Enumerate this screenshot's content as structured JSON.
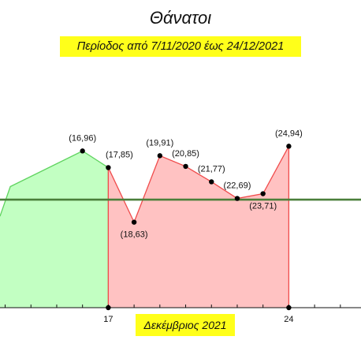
{
  "chart_data": {
    "type": "area",
    "title": "Θάνατοι",
    "subtitle": "Περίοδος από 7/11/2020 έως 24/12/2021",
    "xlabel": "Δεκέμβριος 2021",
    "ylabel": "",
    "x_tick_labels": [
      "17",
      "24"
    ],
    "x_range": [
      12.8,
      26.8
    ],
    "y_range": [
      16.0,
      26.3
    ],
    "reference_line": {
      "y": 20.55,
      "color": "#4a7f3a"
    },
    "green_region": {
      "color": "#c2ffc2",
      "stroke": "#5fd35f",
      "points": [
        {
          "x": 12.8,
          "y": 19.85
        },
        {
          "x": 13.2,
          "y": 21.1
        },
        {
          "x": 16.0,
          "y": 22.6,
          "label": "(16,96)"
        },
        {
          "x": 17.0,
          "y": 21.9,
          "label": "(17,85)"
        }
      ]
    },
    "red_region": {
      "color": "#ffc2c2",
      "stroke": "#f04c4c",
      "points": [
        {
          "x": 17.0,
          "y": 21.9,
          "label": "(17,85)"
        },
        {
          "x": 18.0,
          "y": 19.6,
          "label": "(18,63)"
        },
        {
          "x": 19.0,
          "y": 22.4,
          "label": "(19,91)"
        },
        {
          "x": 20.0,
          "y": 21.95,
          "label": "(20,85)"
        },
        {
          "x": 21.0,
          "y": 21.3,
          "label": "(21,77)"
        },
        {
          "x": 22.0,
          "y": 20.6,
          "label": "(22,69)"
        },
        {
          "x": 23.0,
          "y": 20.8,
          "label": "(23,71)"
        },
        {
          "x": 24.0,
          "y": 22.8,
          "label": "(24,94)"
        }
      ]
    },
    "base_points": [
      {
        "x": 17.0,
        "y": 16.0
      },
      {
        "x": 24.0,
        "y": 16.0
      }
    ]
  }
}
